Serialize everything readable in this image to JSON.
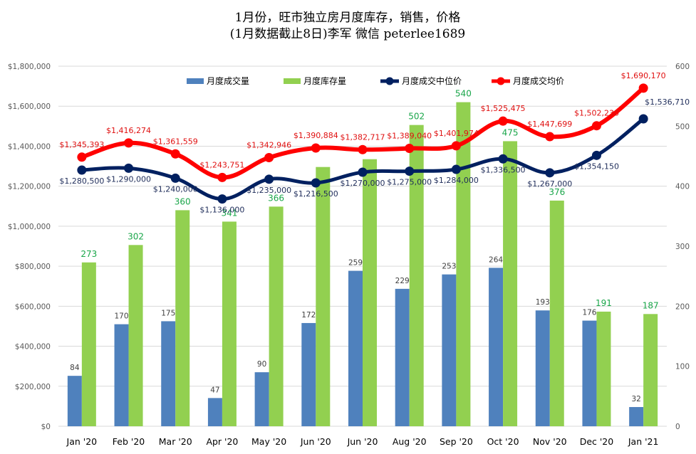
{
  "chart_data": {
    "type": "bar",
    "title_line1": "1月份，旺市独立房月度库存，销售，价格",
    "title_line2": "(1月数据截止8日)李军  微信 peterlee1689",
    "categories": [
      "Jan '20",
      "Feb '20",
      "Mar '20",
      "Apr '20",
      "May '20",
      "Jun '20",
      "Jun '20",
      "Aug '20",
      "Sep '20",
      "Oct '20",
      "Nov '20",
      "Dec '20",
      "Jan '21"
    ],
    "y_left": {
      "min": 0,
      "max": 1800000,
      "step": 200000,
      "tick_labels": [
        "$0",
        "$200,000",
        "$400,000",
        "$600,000",
        "$800,000",
        "$1,000,000",
        "$1,200,000",
        "$1,400,000",
        "$1,600,000",
        "$1,800,000"
      ]
    },
    "y_right": {
      "min": 0,
      "max": 600,
      "step": 100,
      "tick_labels": [
        "0",
        "100",
        "200",
        "300",
        "400",
        "500",
        "600"
      ]
    },
    "legend_position": "top",
    "series": [
      {
        "name": "月度成交量",
        "kind": "bar",
        "axis": "right",
        "color": "#4f81bd",
        "values": [
          84,
          170,
          175,
          47,
          90,
          172,
          259,
          229,
          253,
          264,
          193,
          176,
          32
        ],
        "labels": [
          "84",
          "170",
          "175",
          "47",
          "90",
          "172",
          "259",
          "229",
          "253",
          "264",
          "193",
          "176",
          "32"
        ]
      },
      {
        "name": "月度库存量",
        "kind": "bar",
        "axis": "right",
        "color": "#92d050",
        "values": [
          273,
          302,
          360,
          341,
          366,
          432,
          445,
          502,
          540,
          475,
          376,
          191,
          187
        ],
        "labels": [
          "273",
          "302",
          "360",
          "341",
          "366",
          "",
          "",
          "502",
          "540",
          "475",
          "376",
          "191",
          "187"
        ]
      },
      {
        "name": "月度成交中位价",
        "kind": "line",
        "axis": "left",
        "color": "#002060",
        "values": [
          1280500,
          1290000,
          1240000,
          1136000,
          1235000,
          1216500,
          1270000,
          1275000,
          1284000,
          1336500,
          1267000,
          1354150,
          1536710
        ],
        "labels": [
          "$1,280,500",
          "$1,290,000",
          "$1,240,000",
          "$1,136,000",
          "$1,235,000",
          "$1,216,500",
          "$1,270,000",
          "$1,275,000",
          "$1,284,000",
          "$1,336,500",
          "$1,267,000",
          "$1,354,150",
          "$1,536,710"
        ]
      },
      {
        "name": "月度成交均价",
        "kind": "line",
        "axis": "left",
        "color": "#ff0000",
        "values": [
          1345393,
          1416274,
          1361559,
          1243751,
          1342946,
          1390884,
          1382717,
          1389040,
          1401974,
          1525475,
          1447699,
          1502230,
          1690170
        ],
        "labels": [
          "$1,345,393",
          "$1,416,274",
          "$1,361,559",
          "$1,243,751",
          "$1,342,946",
          "$1,390,884",
          "$1,382,717",
          "$1,389,040",
          "$1,401,974",
          "$1,525,475",
          "$1,447,699",
          "$1,502,230",
          "$1,690,170"
        ]
      }
    ],
    "grid": true
  }
}
